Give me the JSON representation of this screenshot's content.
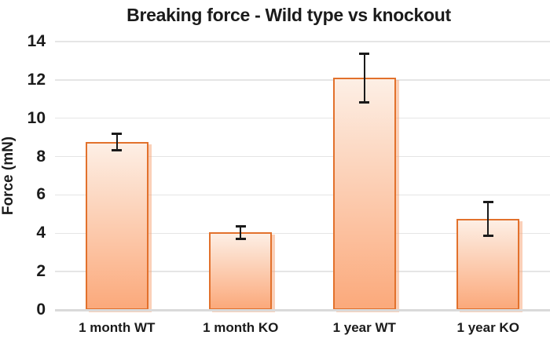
{
  "chart_data": {
    "type": "bar",
    "title": "Breaking force - Wild type vs knockout",
    "categories": [
      "1 month WT",
      "1 month KO",
      "1 year WT",
      "1 year KO"
    ],
    "values": [
      8.75,
      4.05,
      12.1,
      4.75
    ],
    "errors": [
      0.45,
      0.35,
      1.3,
      0.9
    ],
    "xlabel": "",
    "ylabel": "Force (mN)",
    "ylim": [
      0,
      14
    ],
    "yticks": [
      0,
      2,
      4,
      6,
      8,
      10,
      12,
      14
    ],
    "grid": true,
    "legend": false,
    "colors": {
      "bar_fill_top": "#fdefe5",
      "bar_fill_bottom": "#fba97b",
      "bar_border": "#e2712c",
      "bar_shadow": "rgba(247,170,125,0.55)",
      "gridline": "#e5e5e5",
      "axis_line": "#dadada",
      "error_bar": "#1a1a1a",
      "text": "#1b1b1b",
      "background": "#ffffff"
    }
  }
}
